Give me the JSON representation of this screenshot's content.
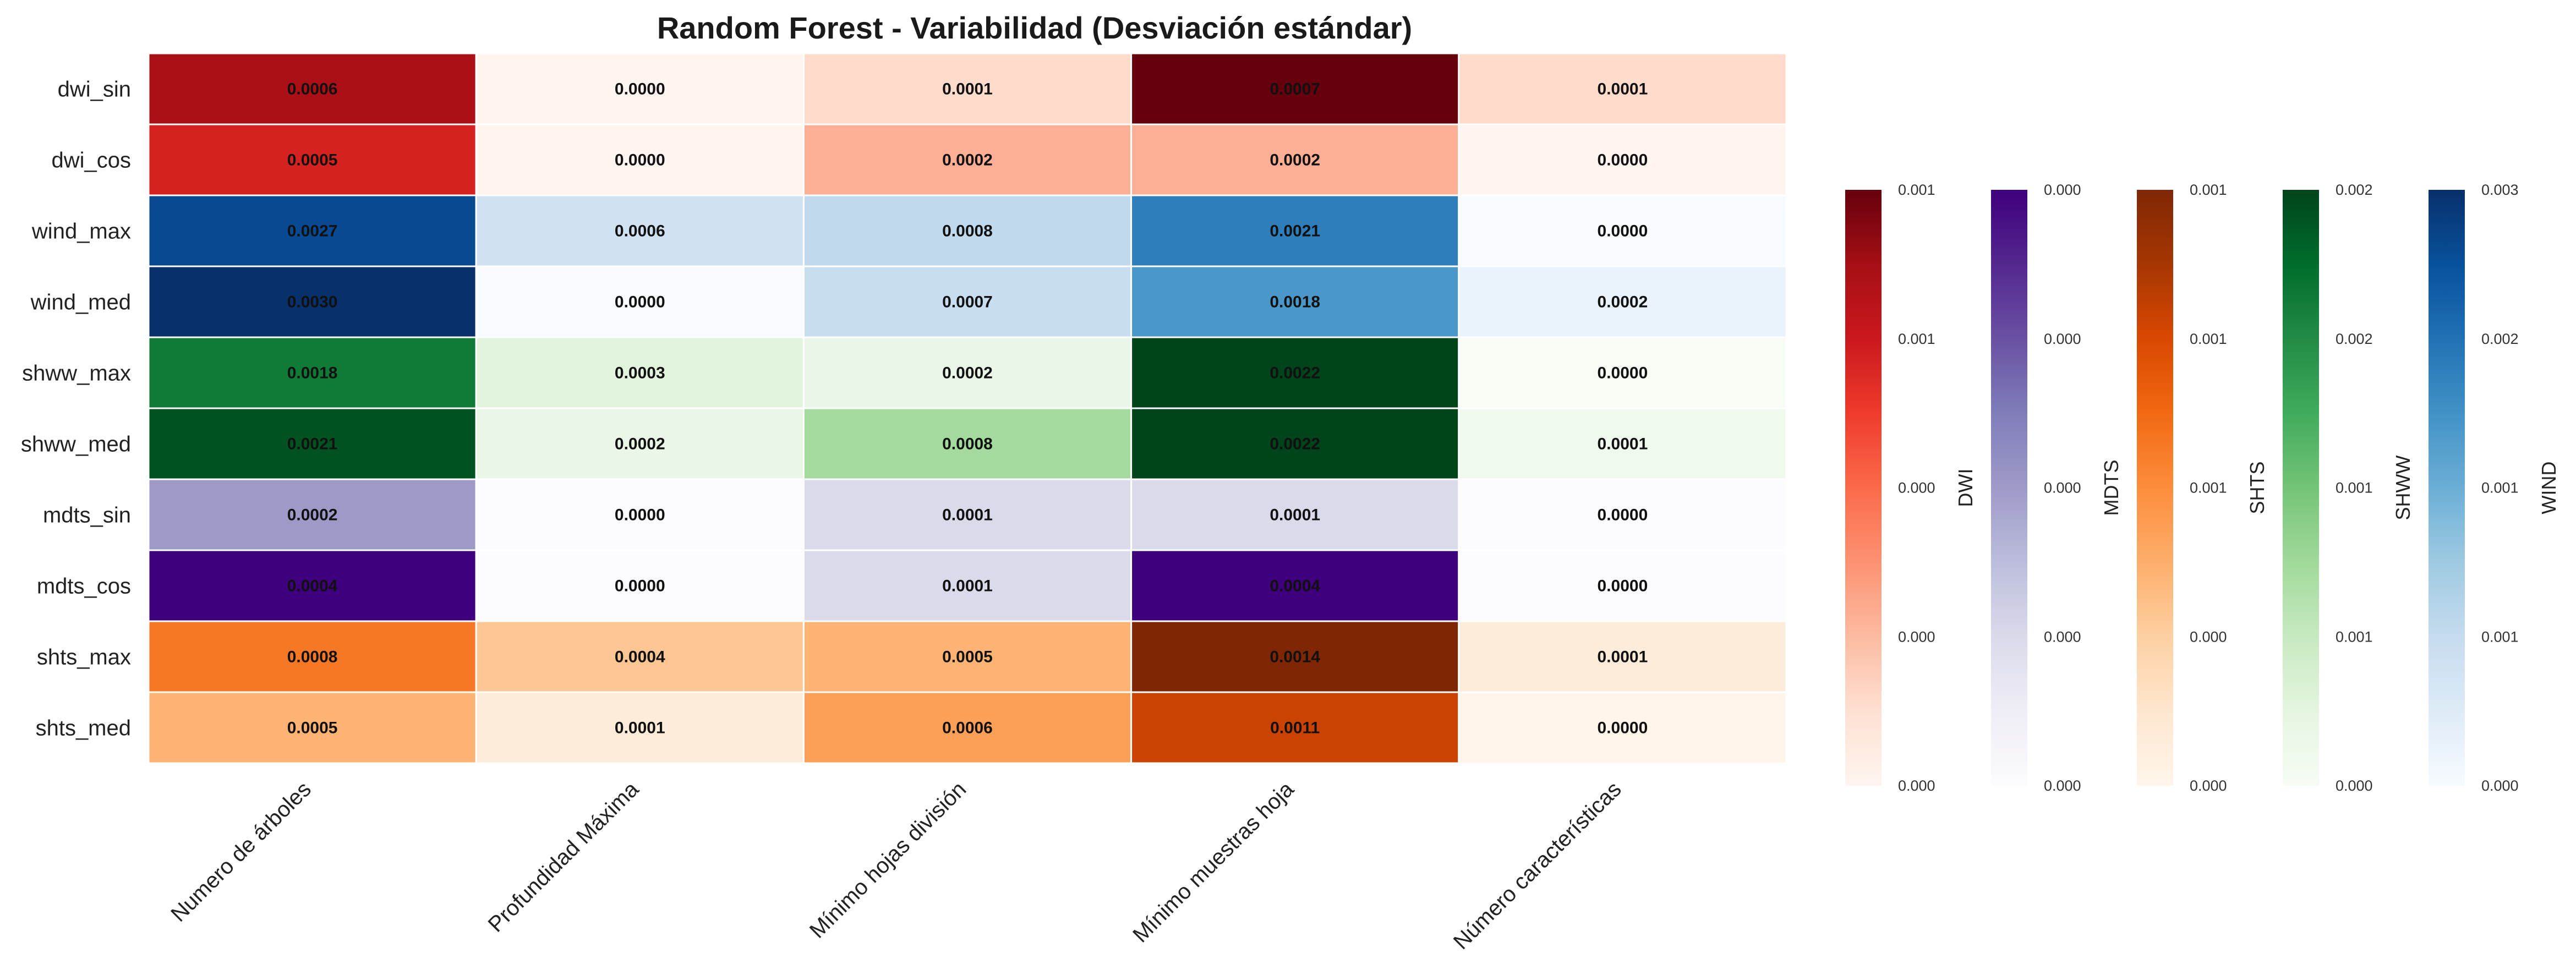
{
  "chart_data": {
    "type": "heatmap",
    "title": "Random Forest - Variabilidad (Desviación estándar)",
    "columns": [
      "Numero de árboles",
      "Profundidad Máxima",
      "Mínimo hojas división",
      "Mínimo muestras hoja",
      "Número características"
    ],
    "rows": [
      {
        "name": "dwi_sin",
        "group": "DWI",
        "values": [
          0.0006,
          0.0,
          0.0001,
          0.0007,
          0.0001
        ],
        "labels": [
          "0.0006",
          "0.0000",
          "0.0001",
          "0.0007",
          "0.0001"
        ]
      },
      {
        "name": "dwi_cos",
        "group": "DWI",
        "values": [
          0.0005,
          0.0,
          0.0002,
          0.0002,
          0.0
        ],
        "labels": [
          "0.0005",
          "0.0000",
          "0.0002",
          "0.0002",
          "0.0000"
        ]
      },
      {
        "name": "wind_max",
        "group": "WIND",
        "values": [
          0.0027,
          0.0006,
          0.0008,
          0.0021,
          0.0
        ],
        "labels": [
          "0.0027",
          "0.0006",
          "0.0008",
          "0.0021",
          "0.0000"
        ]
      },
      {
        "name": "wind_med",
        "group": "WIND",
        "values": [
          0.003,
          0.0,
          0.0007,
          0.0018,
          0.0002
        ],
        "labels": [
          "0.0030",
          "0.0000",
          "0.0007",
          "0.0018",
          "0.0002"
        ]
      },
      {
        "name": "shww_max",
        "group": "SHWW",
        "values": [
          0.0018,
          0.0003,
          0.0002,
          0.0022,
          0.0
        ],
        "labels": [
          "0.0018",
          "0.0003",
          "0.0002",
          "0.0022",
          "0.0000"
        ]
      },
      {
        "name": "shww_med",
        "group": "SHWW",
        "values": [
          0.0021,
          0.0002,
          0.0008,
          0.0022,
          0.0001
        ],
        "labels": [
          "0.0021",
          "0.0002",
          "0.0008",
          "0.0022",
          "0.0001"
        ]
      },
      {
        "name": "mdts_sin",
        "group": "MDTS",
        "values": [
          0.0002,
          0.0,
          0.0001,
          0.0001,
          0.0
        ],
        "labels": [
          "0.0002",
          "0.0000",
          "0.0001",
          "0.0001",
          "0.0000"
        ]
      },
      {
        "name": "mdts_cos",
        "group": "MDTS",
        "values": [
          0.0004,
          0.0,
          0.0001,
          0.0004,
          0.0
        ],
        "labels": [
          "0.0004",
          "0.0000",
          "0.0001",
          "0.0004",
          "0.0000"
        ]
      },
      {
        "name": "shts_max",
        "group": "SHTS",
        "values": [
          0.0008,
          0.0004,
          0.0005,
          0.0014,
          0.0001
        ],
        "labels": [
          "0.0008",
          "0.0004",
          "0.0005",
          "0.0014",
          "0.0001"
        ]
      },
      {
        "name": "shts_med",
        "group": "SHTS",
        "values": [
          0.0005,
          0.0001,
          0.0006,
          0.0011,
          0.0
        ],
        "labels": [
          "0.0005",
          "0.0001",
          "0.0006",
          "0.0011",
          "0.0000"
        ]
      }
    ],
    "colorbars": [
      {
        "label": "DWI",
        "colormap": "Reds",
        "range": [
          0,
          0.0007
        ],
        "ticks": [
          "0.000",
          "0.000",
          "0.000",
          "0.001",
          "0.001"
        ]
      },
      {
        "label": "MDTS",
        "colormap": "Purples",
        "range": [
          0,
          0.0004
        ],
        "ticks": [
          "0.000",
          "0.000",
          "0.000",
          "0.000",
          "0.000"
        ]
      },
      {
        "label": "SHTS",
        "colormap": "Oranges",
        "range": [
          0,
          0.0014
        ],
        "ticks": [
          "0.000",
          "0.000",
          "0.001",
          "0.001",
          "0.001"
        ]
      },
      {
        "label": "SHWW",
        "colormap": "Greens",
        "range": [
          0,
          0.0022
        ],
        "ticks": [
          "0.000",
          "0.001",
          "0.001",
          "0.002",
          "0.002"
        ]
      },
      {
        "label": "WIND",
        "colormap": "Blues",
        "range": [
          0,
          0.003
        ],
        "ticks": [
          "0.000",
          "0.001",
          "0.001",
          "0.002",
          "0.003"
        ]
      }
    ],
    "colormaps": {
      "Reds": [
        "#fff5f0",
        "#fee0d2",
        "#fcbba1",
        "#fc9272",
        "#fb6a4a",
        "#ef3b2c",
        "#cb181d",
        "#a50f15",
        "#67000d"
      ],
      "Purples": [
        "#fcfbfd",
        "#efedf5",
        "#dadaeb",
        "#bcbddc",
        "#9e9ac8",
        "#807dba",
        "#6a51a3",
        "#54278f",
        "#3f007d"
      ],
      "Oranges": [
        "#fff5eb",
        "#fee6ce",
        "#fdd0a2",
        "#fdae6b",
        "#fd8d3c",
        "#f16913",
        "#d94801",
        "#a63603",
        "#7f2704"
      ],
      "Greens": [
        "#f7fcf5",
        "#e5f5e0",
        "#c7e9c0",
        "#a1d99b",
        "#74c476",
        "#41ab5d",
        "#238b45",
        "#006d2c",
        "#00441b"
      ],
      "Blues": [
        "#f7fbff",
        "#deebf7",
        "#c6dbef",
        "#9ecae1",
        "#6baed6",
        "#4292c6",
        "#2171b5",
        "#08519c",
        "#08306b"
      ]
    },
    "grid": false,
    "legend_position": "right"
  }
}
